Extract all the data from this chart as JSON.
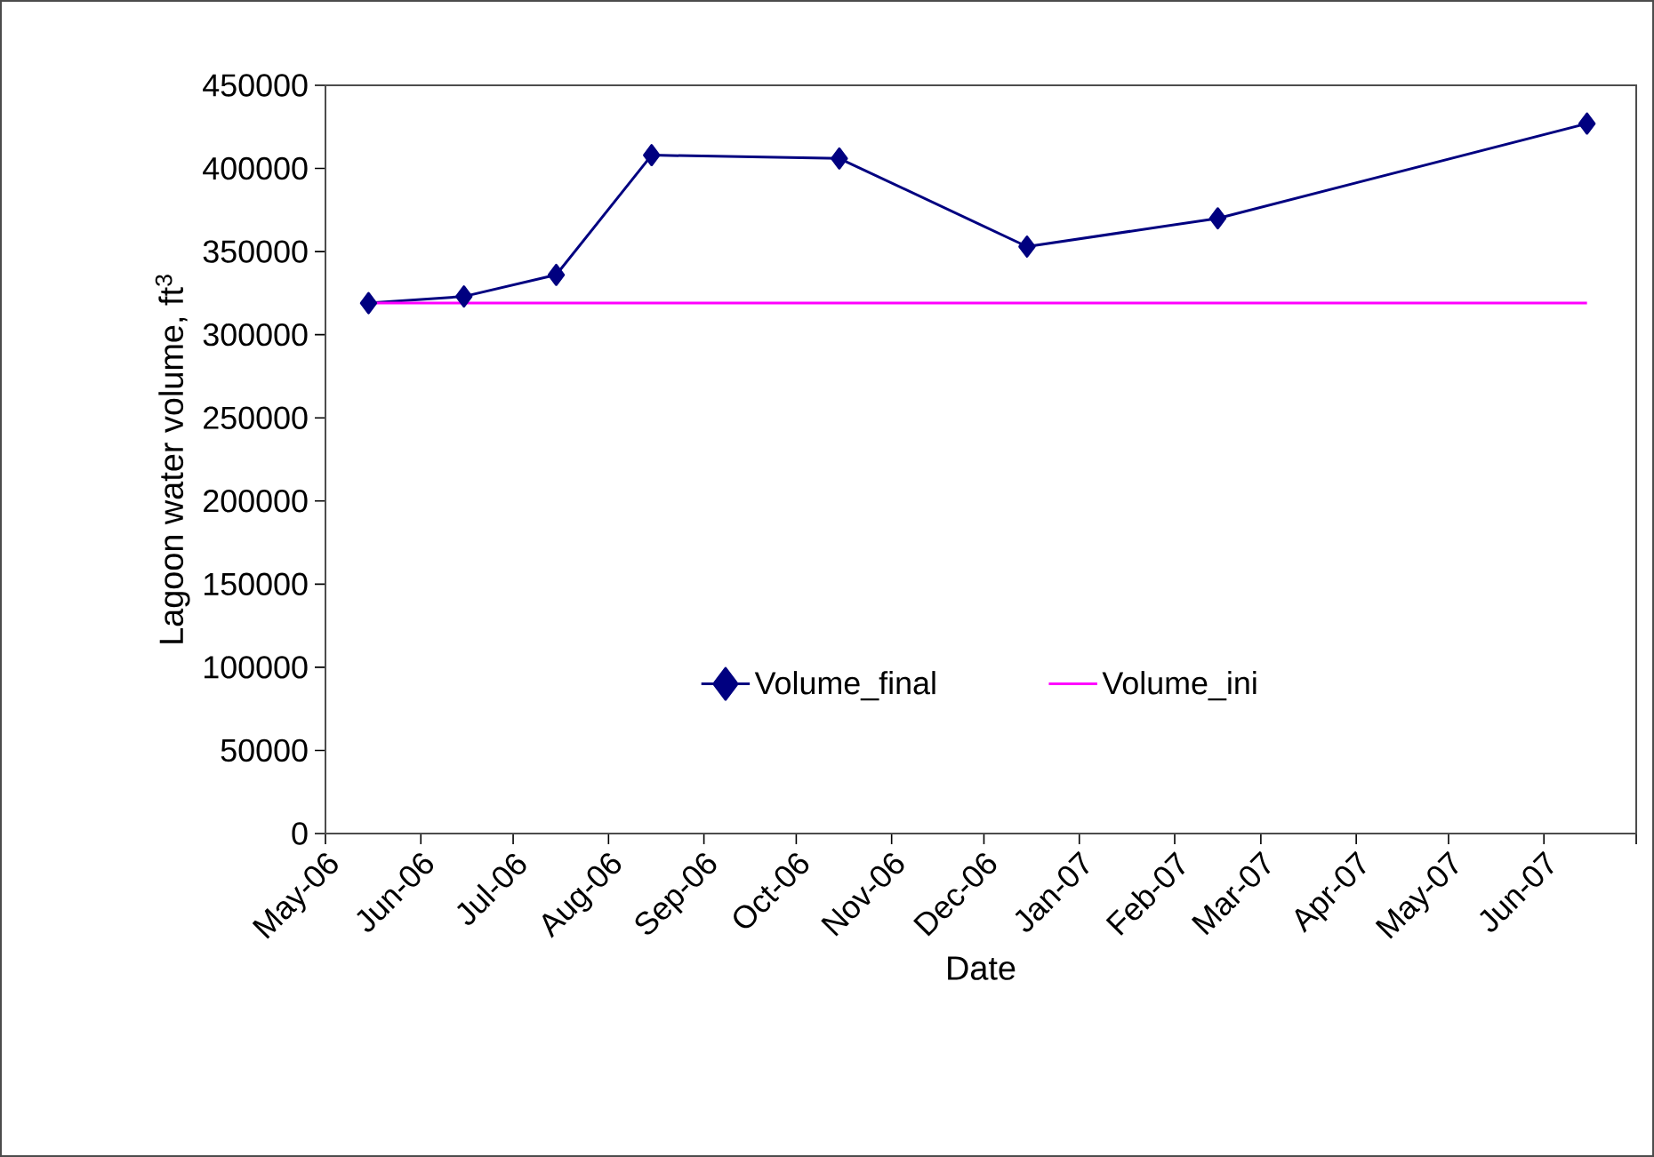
{
  "chart_data": {
    "type": "line",
    "xlabel": "Date",
    "ylabel": "Lagoon water volume, ft$^{3}$",
    "xlim": [
      "2006-05-01",
      "2007-07-01"
    ],
    "xticks": [
      {
        "value": "2006-05-01",
        "label": "May-06"
      },
      {
        "value": "2006-06-01",
        "label": "Jun-06"
      },
      {
        "value": "2006-07-01",
        "label": "Jul-06"
      },
      {
        "value": "2006-08-01",
        "label": "Aug-06"
      },
      {
        "value": "2006-09-01",
        "label": "Sep-06"
      },
      {
        "value": "2006-10-01",
        "label": "Oct-06"
      },
      {
        "value": "2006-11-01",
        "label": "Nov-06"
      },
      {
        "value": "2006-12-01",
        "label": "Dec-06"
      },
      {
        "value": "2007-01-01",
        "label": "Jan-07"
      },
      {
        "value": "2007-02-01",
        "label": "Feb-07"
      },
      {
        "value": "2007-03-01",
        "label": "Mar-07"
      },
      {
        "value": "2007-04-01",
        "label": "Apr-07"
      },
      {
        "value": "2007-05-01",
        "label": "May-07"
      },
      {
        "value": "2007-06-01",
        "label": "Jun-07"
      },
      {
        "value": "2007-07-01",
        "label": null
      }
    ],
    "ylim": [
      0,
      450000
    ],
    "yticks": [
      0,
      50000,
      100000,
      150000,
      200000,
      250000,
      300000,
      350000,
      400000,
      450000
    ],
    "grid": false,
    "legend": "bottom",
    "marker": "diamond",
    "line_style": "solid",
    "series": [
      {
        "name": "Volume_final",
        "color": "#000080",
        "x": [
          "2006-05-15",
          "2006-06-15",
          "2006-07-15",
          "2006-08-15",
          "2006-10-15",
          "2006-12-15",
          "2007-02-15",
          "2007-06-15"
        ],
        "values": [
          319000,
          323000,
          336000,
          408000,
          406000,
          353000,
          370000,
          427000
        ]
      },
      {
        "name": "Volume_ini",
        "color": "#ff00ff",
        "marker": "none",
        "x": [
          "2006-05-15",
          "2007-06-15"
        ],
        "values": [
          319000,
          319000
        ]
      }
    ]
  }
}
